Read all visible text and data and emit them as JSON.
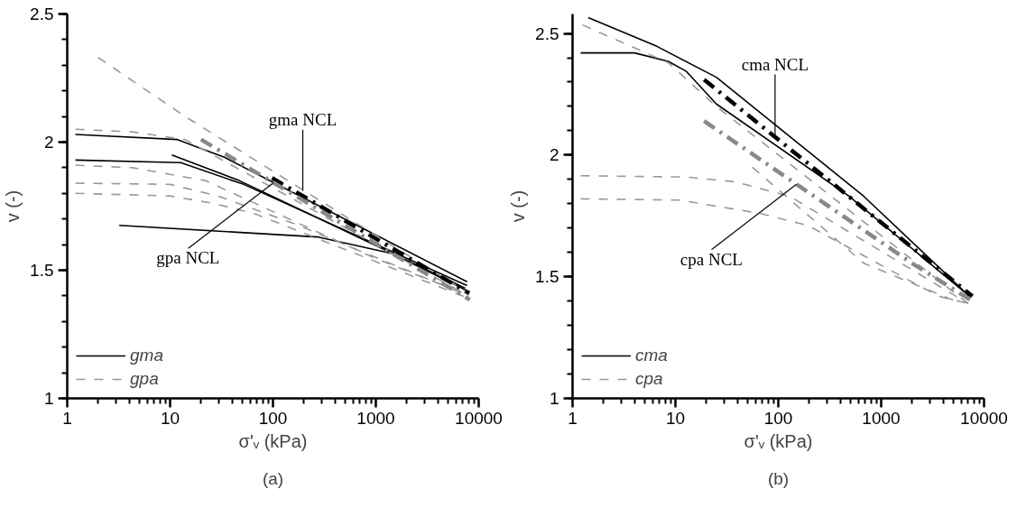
{
  "chart_data": [
    {
      "type": "line",
      "title": "(a)",
      "xlabel": "σ'ᵥ (kPa)",
      "ylabel": "v (-)",
      "log": "x",
      "xlim": [
        1,
        10000
      ],
      "xticks": [
        1,
        10,
        100,
        1000,
        10000
      ],
      "ylim": [
        1,
        2.5
      ],
      "yticks": [
        1,
        1.5,
        2,
        2.5
      ],
      "grid": false,
      "legend": "bottom left",
      "marker": "none",
      "series": [
        {
          "name": "gma",
          "color": "#000000",
          "line_style": "solid",
          "x": [
            1.2,
            11.8,
            34,
            7700
          ],
          "values": [
            2.03,
            2.01,
            1.94,
            1.455
          ]
        },
        {
          "color": "#000000",
          "line_style": "solid",
          "x": [
            1.2,
            12.7,
            52,
            7700
          ],
          "values": [
            1.93,
            1.92,
            1.835,
            1.44
          ]
        },
        {
          "color": "#000000",
          "line_style": "solid",
          "x": [
            10.4,
            47,
            7400
          ],
          "values": [
            1.95,
            1.85,
            1.43
          ]
        },
        {
          "color": "#000000",
          "line_style": "solid",
          "x": [
            3.2,
            270,
            1440,
            7700
          ],
          "values": [
            1.675,
            1.63,
            1.565,
            1.42
          ]
        },
        {
          "name": "gpa",
          "color": "#999999",
          "line_style": "dashed",
          "x": [
            2,
            14,
            8000
          ],
          "values": [
            2.33,
            2.1,
            1.41
          ]
        },
        {
          "color": "#999999",
          "line_style": "dashed",
          "x": [
            1.2,
            4.3,
            14,
            8000
          ],
          "values": [
            2.05,
            2.04,
            2.01,
            1.4
          ]
        },
        {
          "color": "#999999",
          "line_style": "dashed",
          "x": [
            1.2,
            4.3,
            22,
            940,
            7000
          ],
          "values": [
            1.91,
            1.9,
            1.85,
            1.55,
            1.41
          ]
        },
        {
          "color": "#999999",
          "line_style": "dashed",
          "x": [
            1.2,
            10,
            29,
            165,
            8000
          ],
          "values": [
            1.84,
            1.835,
            1.79,
            1.68,
            1.4
          ]
        },
        {
          "color": "#999999",
          "line_style": "dashed",
          "x": [
            1.2,
            10,
            27,
            67,
            8000
          ],
          "values": [
            1.8,
            1.79,
            1.76,
            1.72,
            1.39
          ]
        },
        {
          "color": "#000000",
          "line_style": "dashdot",
          "x": [
            98,
            8100
          ],
          "values": [
            1.86,
            1.41
          ]
        },
        {
          "color": "#888888",
          "line_style": "dashdot",
          "x": [
            20,
            8200
          ],
          "values": [
            2.01,
            1.385
          ]
        }
      ],
      "annotations": [
        {
          "text": "gma NCL",
          "x": 195,
          "y": 1.81
        },
        {
          "text": "gpa NCL",
          "x": 100,
          "y": 1.84
        }
      ]
    },
    {
      "type": "line",
      "title": "(b)",
      "xlabel": "σ'ᵥ (kPa)",
      "ylabel": "v (-)",
      "log": "x",
      "xlim": [
        1,
        10000
      ],
      "xticks": [
        1,
        10,
        100,
        1000,
        10000
      ],
      "ylim": [
        1,
        2.58
      ],
      "yticks": [
        1,
        1.5,
        2,
        2.5
      ],
      "grid": false,
      "legend": "bottom left",
      "marker": "none",
      "series": [
        {
          "name": "cma",
          "color": "#000000",
          "line_style": "solid",
          "x": [
            1.42,
            6.6,
            25,
            680,
            7200
          ],
          "values": [
            2.565,
            2.447,
            2.32,
            1.83,
            1.42
          ]
        },
        {
          "color": "#000000",
          "line_style": "solid",
          "x": [
            1.2,
            4,
            8.5,
            12.7,
            25,
            490,
            7200
          ],
          "values": [
            2.42,
            2.42,
            2.385,
            2.345,
            2.21,
            1.83,
            1.42
          ]
        },
        {
          "name": "cpa",
          "color": "#999999",
          "line_style": "dashed",
          "x": [
            1.25,
            8.5,
            25,
            7000
          ],
          "values": [
            2.535,
            2.38,
            2.2,
            1.39
          ]
        },
        {
          "color": "#999999",
          "line_style": "dashed",
          "x": [
            1.2,
            12.7,
            38,
            130,
            7000
          ],
          "values": [
            1.915,
            1.91,
            1.89,
            1.83,
            1.39
          ]
        },
        {
          "color": "#999999",
          "line_style": "dashed",
          "x": [
            1.2,
            11,
            67,
            195,
            3600,
            7000
          ],
          "values": [
            1.82,
            1.815,
            1.76,
            1.71,
            1.42,
            1.39
          ]
        },
        {
          "color": "#999999",
          "line_style": "dashed",
          "x": [
            56,
            680,
            6000
          ],
          "values": [
            1.95,
            1.555,
            1.39
          ]
        },
        {
          "color": "#000000",
          "line_style": "dashdot",
          "x": [
            19,
            7700
          ],
          "values": [
            2.31,
            1.42
          ]
        },
        {
          "color": "#888888",
          "line_style": "dashdot",
          "x": [
            19,
            2000,
            7700
          ],
          "values": [
            2.14,
            1.555,
            1.4
          ]
        }
      ],
      "annotations": [
        {
          "text": "cma NCL",
          "x": 93,
          "y": 2.08
        },
        {
          "text": "cpa NCL",
          "x": 150,
          "y": 1.88
        }
      ]
    }
  ]
}
